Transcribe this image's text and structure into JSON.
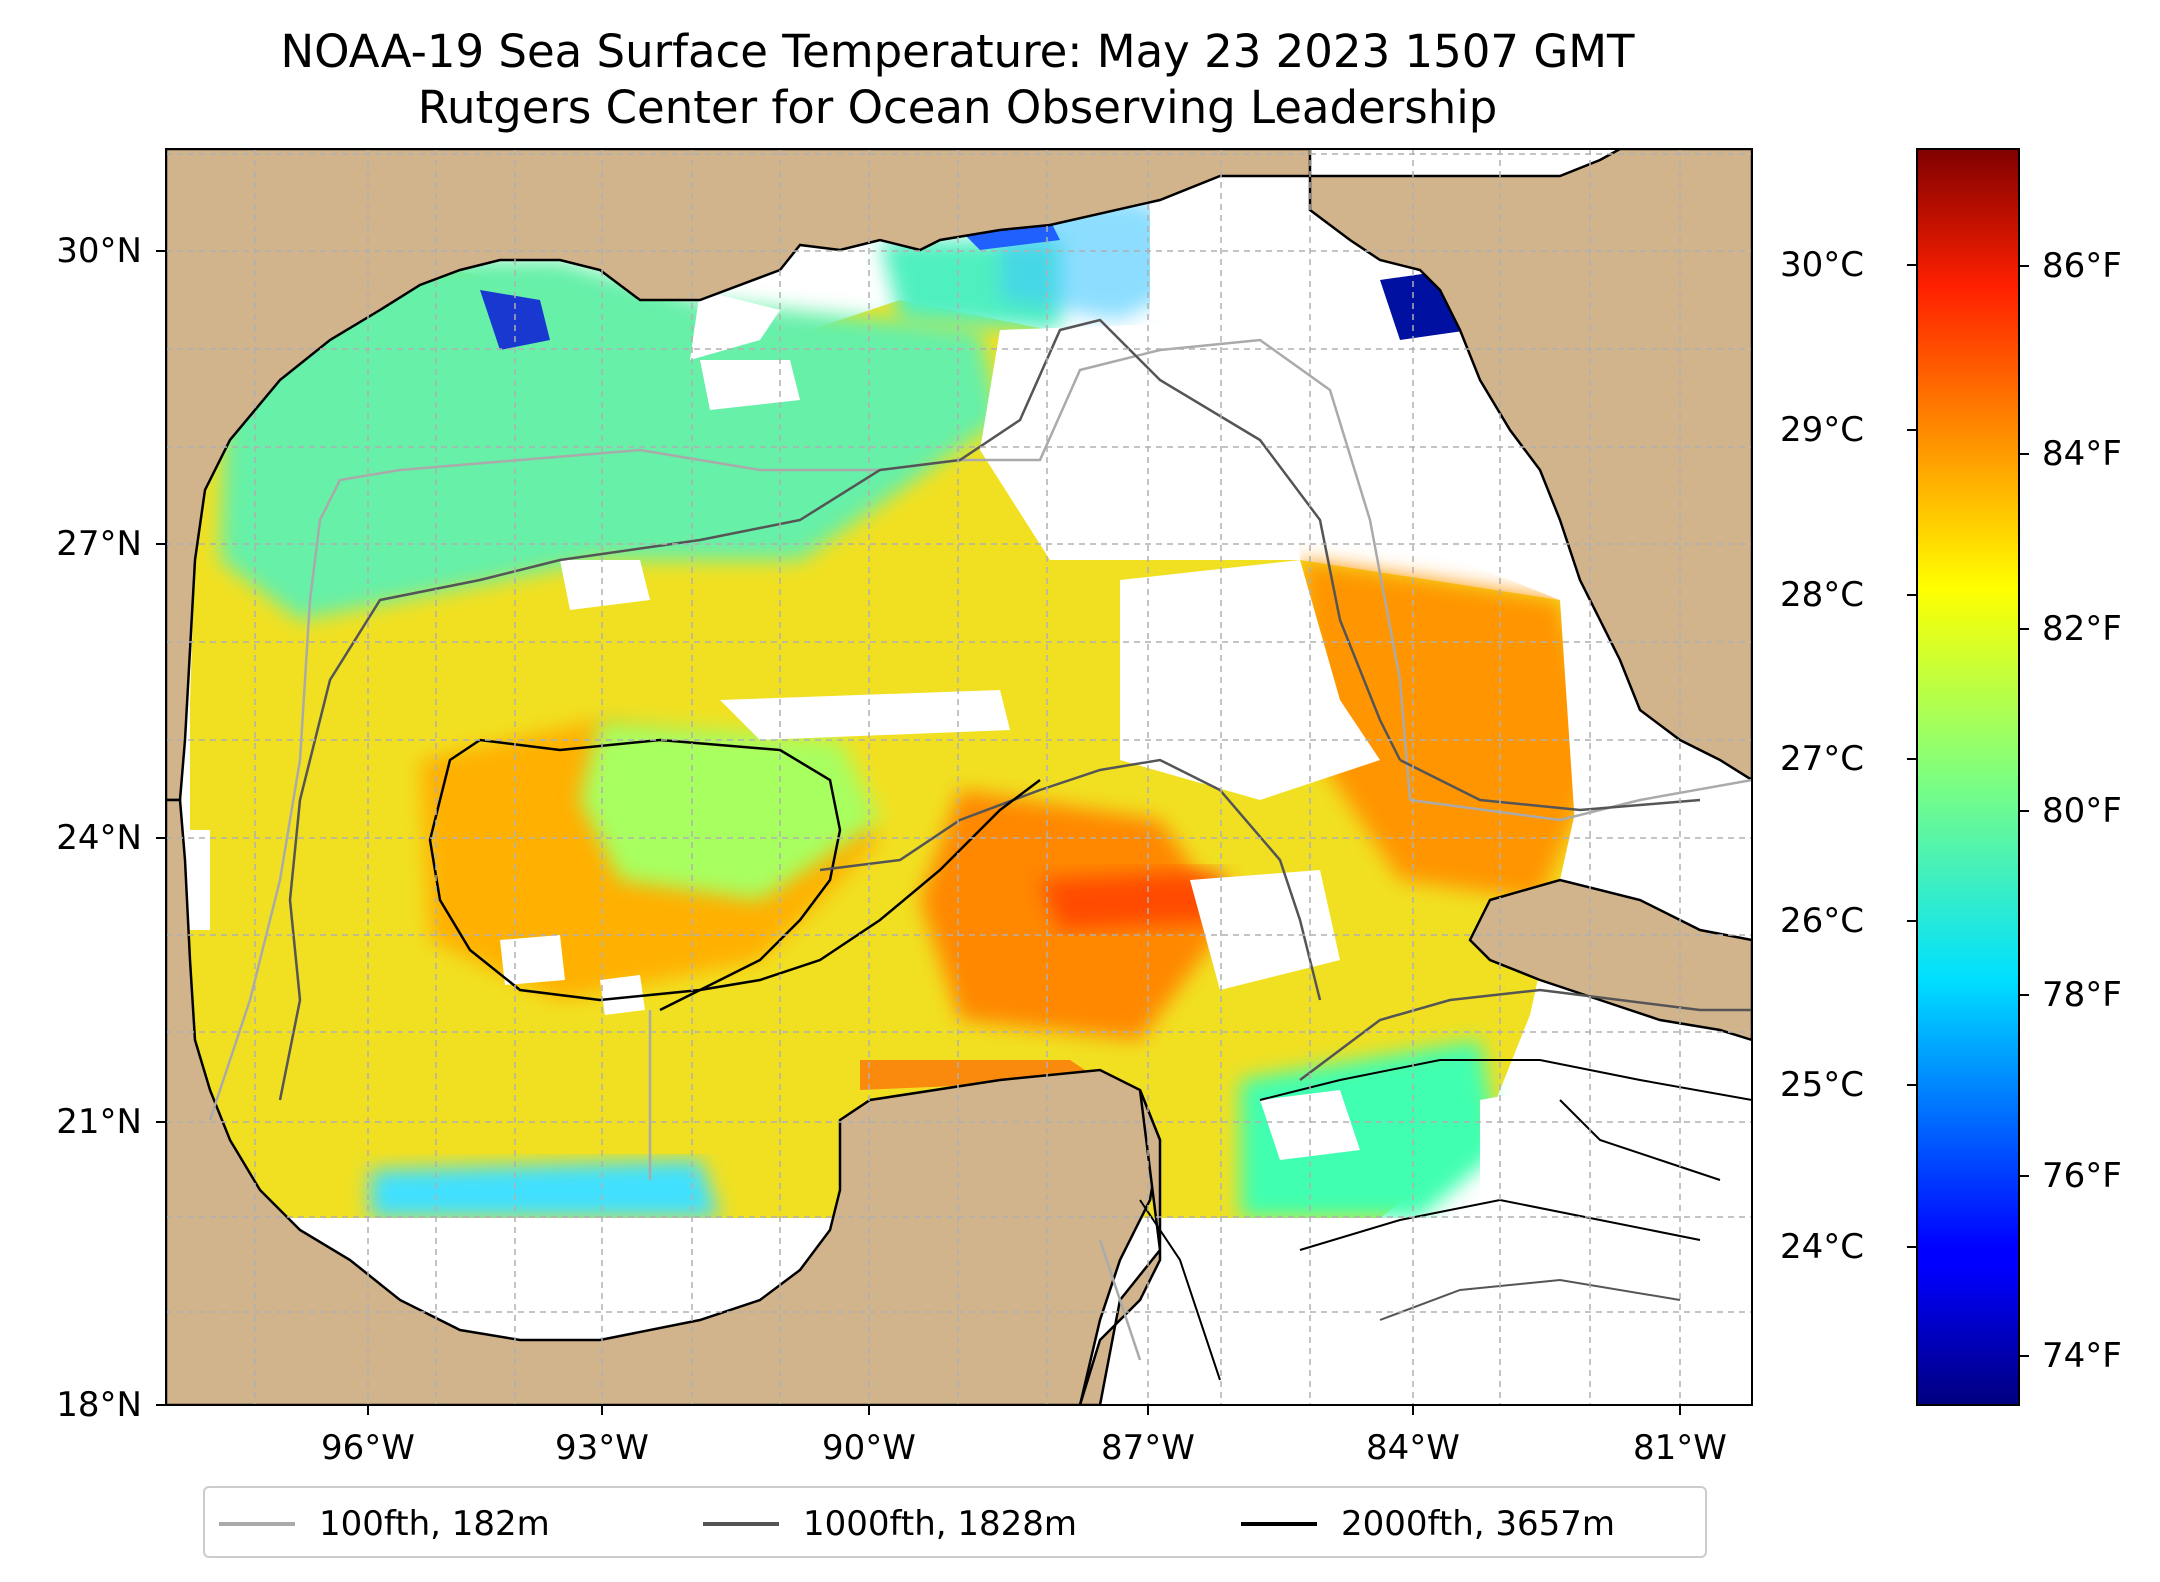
{
  "title": {
    "line1": "NOAA-19 Sea Surface Temperature: May 23 2023 1507 GMT",
    "line2": "Rutgers Center for Ocean Observing Leadership"
  },
  "axes": {
    "lat_labels": [
      "30°N",
      "27°N",
      "24°N",
      "21°N",
      "18°N"
    ],
    "lon_labels": [
      "96°W",
      "93°W",
      "90°W",
      "87°W",
      "84°W",
      "81°W"
    ]
  },
  "colorbar": {
    "celsius_labels": [
      "30°C",
      "29°C",
      "28°C",
      "27°C",
      "26°C",
      "25°C",
      "24°C"
    ],
    "fahrenheit_labels": [
      "86°F",
      "84°F",
      "82°F",
      "80°F",
      "78°F",
      "76°F",
      "74°F"
    ],
    "colormap": "jet"
  },
  "legend": {
    "items": [
      {
        "label": "100fth, 182m",
        "color": "#aaaaaa"
      },
      {
        "label": "1000fth, 1828m",
        "color": "#555555"
      },
      {
        "label": "2000fth, 3657m",
        "color": "#000000"
      }
    ]
  },
  "colors": {
    "land": "#d2b48c",
    "no_data": "#ffffff",
    "grid": "#b0b0b0"
  }
}
